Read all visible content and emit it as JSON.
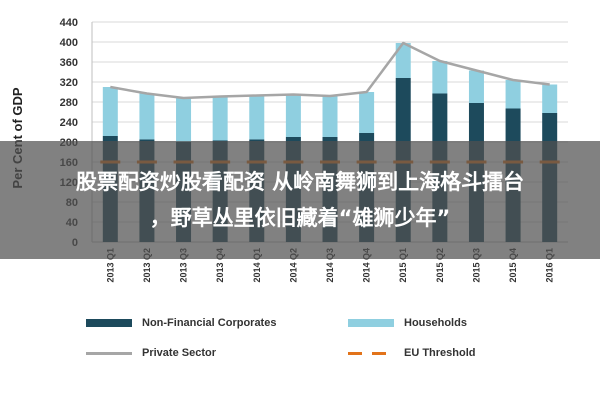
{
  "chart_data": {
    "type": "bar",
    "ylabel": "Per Cent of GDP",
    "ylim": [
      0,
      440
    ],
    "yticks": [
      0,
      40,
      80,
      120,
      160,
      200,
      240,
      280,
      320,
      360,
      400,
      440
    ],
    "categories": [
      "2013 Q1",
      "2013 Q2",
      "2013 Q3",
      "2013 Q4",
      "2014 Q1",
      "2014 Q2",
      "2014 Q3",
      "2014 Q4",
      "2015 Q1",
      "2015 Q2",
      "2015 Q3",
      "2015 Q4",
      "2016 Q1"
    ],
    "series": [
      {
        "name": "Non-Financial Corporates",
        "kind": "stacked-bar",
        "color": "#1d4a5c",
        "values": [
          212,
          205,
          200,
          203,
          205,
          210,
          210,
          218,
          328,
          297,
          278,
          267,
          258
        ]
      },
      {
        "name": "Households",
        "kind": "stacked-bar",
        "color": "#8fcfe0",
        "values": [
          98,
          92,
          88,
          88,
          88,
          85,
          82,
          82,
          70,
          65,
          65,
          57,
          57
        ]
      },
      {
        "name": "Private Sector",
        "kind": "line",
        "color": "#a6a6a6",
        "values": [
          310,
          297,
          288,
          291,
          293,
          295,
          292,
          300,
          398,
          362,
          343,
          324,
          315
        ]
      },
      {
        "name": "EU Threshold",
        "kind": "dashed-line",
        "color": "#e2731a",
        "values": [
          160,
          160,
          160,
          160,
          160,
          160,
          160,
          160,
          160,
          160,
          160,
          160,
          160
        ]
      }
    ],
    "grid": true,
    "legend_position": "bottom"
  },
  "overlay": {
    "line1": "股票配资炒股看配资 从岭南舞狮到上海格斗擂台",
    "line2": "，野草丛里依旧藏着“雄狮少年”"
  }
}
